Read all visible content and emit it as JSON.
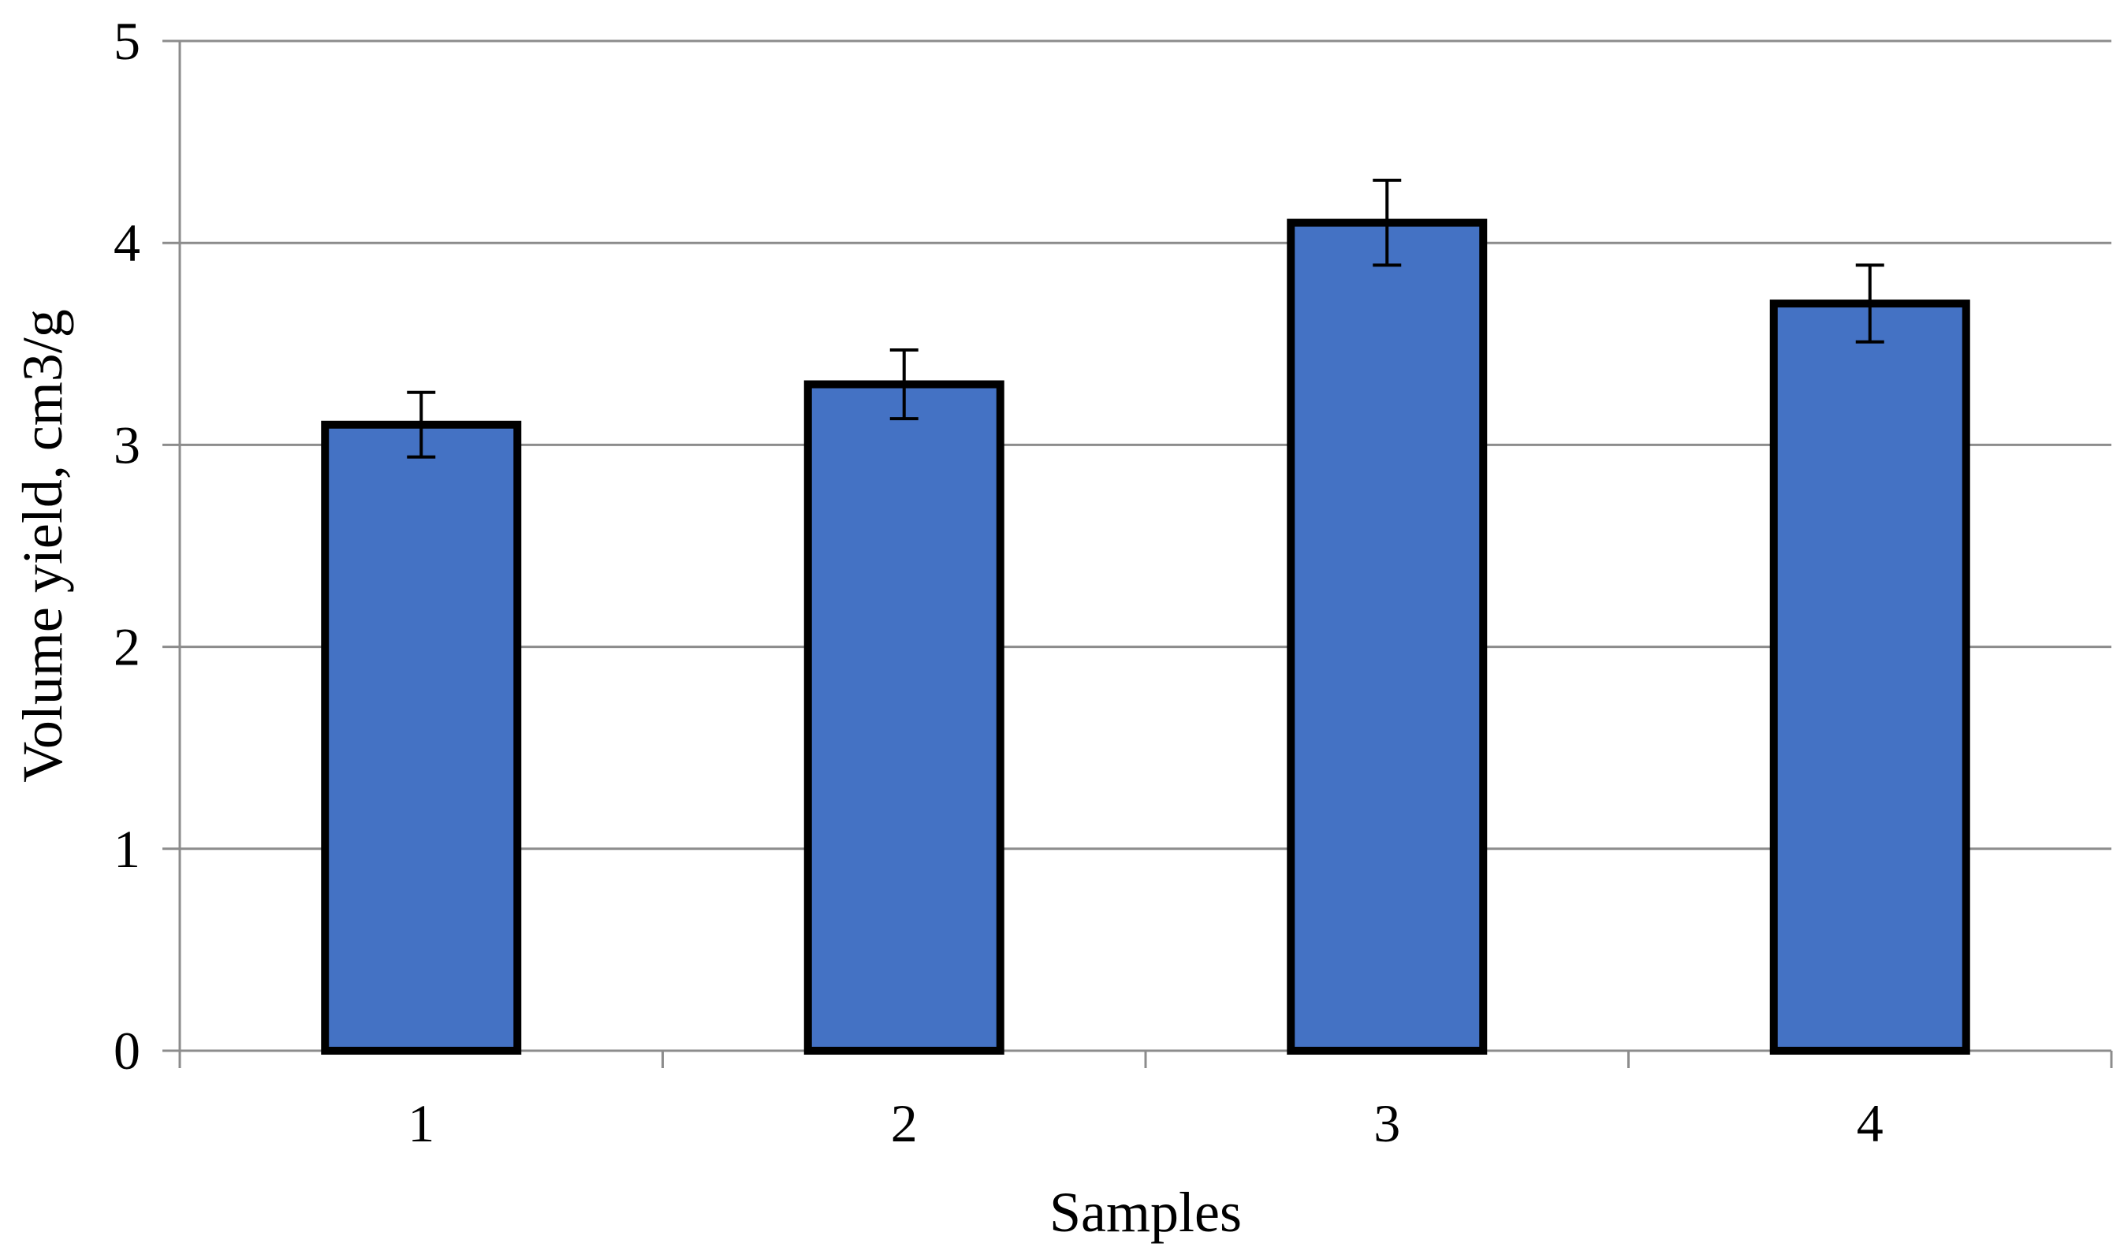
{
  "chart_data": {
    "type": "bar",
    "title": "",
    "xlabel": "Samples",
    "ylabel": "Volume yield, cm3/g",
    "categories": [
      "1",
      "2",
      "3",
      "4"
    ],
    "values": [
      3.1,
      3.3,
      4.1,
      3.7
    ],
    "error": [
      0.16,
      0.17,
      0.21,
      0.19
    ],
    "ylim": [
      0,
      5
    ],
    "yticks": [
      "0",
      "1",
      "2",
      "3",
      "4",
      "5"
    ],
    "grid": true,
    "legend": "none",
    "colors": {
      "bar_fill": "#4472C4",
      "bar_stroke": "#000000",
      "grid": "#8c8c8c",
      "axis": "#8c8c8c",
      "error_bar": "#000000"
    }
  }
}
